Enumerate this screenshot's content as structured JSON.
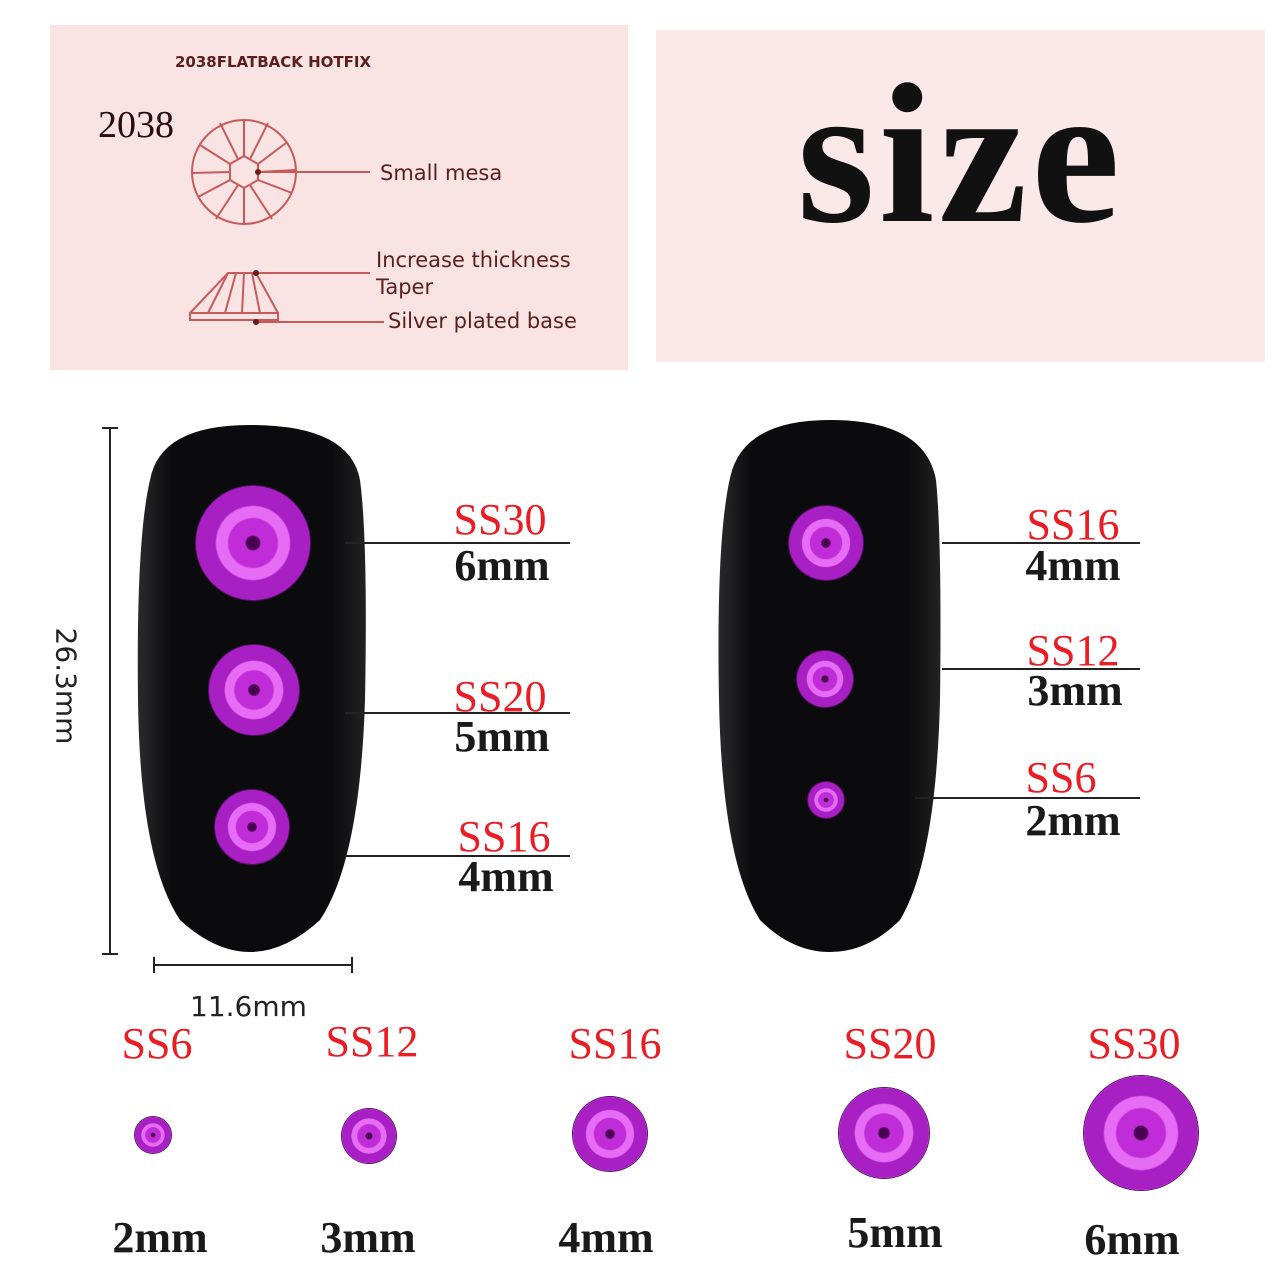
{
  "diagram": {
    "header": "2038FLATBACK HOTFIX",
    "model": "2038",
    "callouts": [
      "Small mesa",
      "Increase thickness",
      "Taper",
      "Silver plated base"
    ]
  },
  "title": "size",
  "dimensions": {
    "height": "26.3mm",
    "width": "11.6mm"
  },
  "left_nail": [
    {
      "ss": "SS30",
      "mm": "6mm"
    },
    {
      "ss": "SS20",
      "mm": "5mm"
    },
    {
      "ss": "SS16",
      "mm": "4mm"
    }
  ],
  "right_nail": [
    {
      "ss": "SS16",
      "mm": "4mm"
    },
    {
      "ss": "SS12",
      "mm": "3mm"
    },
    {
      "ss": "SS6",
      "mm": "2mm"
    }
  ],
  "size_row": [
    {
      "ss": "SS6",
      "mm": "2mm"
    },
    {
      "ss": "SS12",
      "mm": "3mm"
    },
    {
      "ss": "SS16",
      "mm": "4mm"
    },
    {
      "ss": "SS20",
      "mm": "5mm"
    },
    {
      "ss": "SS30",
      "mm": "6mm"
    }
  ],
  "colors": {
    "label_red": "#ea1c24",
    "gem": "#c02cd8",
    "panel": "#f9e3e3",
    "nail": "#0d0d0f"
  }
}
